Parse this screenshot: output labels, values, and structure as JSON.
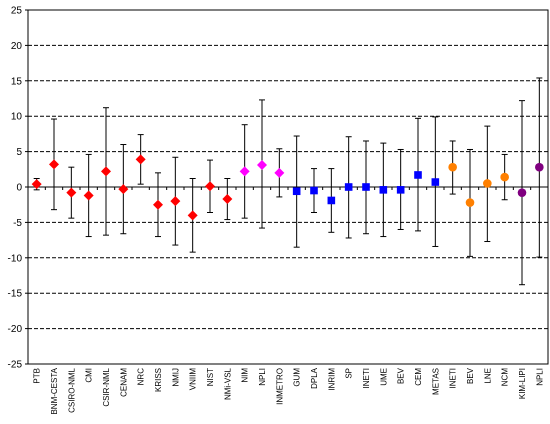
{
  "chart_data": {
    "type": "scatter",
    "title": "",
    "xlabel": "",
    "ylabel": "",
    "ylim": [
      -25,
      25
    ],
    "yticks": [
      -25,
      -20,
      -15,
      -10,
      -5,
      0,
      5,
      10,
      15,
      20,
      25
    ],
    "grid": "horizontal dashed",
    "legend": "none",
    "error_bars": true,
    "categories": [
      "PTB",
      "BNM-CESTA",
      "CSIRO-NML",
      "CMI",
      "CSIR-NML",
      "CENAM",
      "NRC",
      "KRISS",
      "NMIJ",
      "VNIIM",
      "NIST",
      "NMi-VSL",
      "NIM",
      "NPLI",
      "INMETRO",
      "GUM",
      "DPLA",
      "INRIM",
      "SP",
      "INETI",
      "UME",
      "BEV",
      "CEM",
      "METAS",
      "INETI",
      "BEV",
      "LNE",
      "NCM",
      "KIM-LIPI",
      "NPLI"
    ],
    "points": [
      {
        "label": "PTB",
        "y": 0.4,
        "lower": -0.4,
        "upper": 1.2,
        "marker": "diamond",
        "color": "#ff0000"
      },
      {
        "label": "BNM-CESTA",
        "y": 3.2,
        "lower": -3.2,
        "upper": 9.6,
        "marker": "diamond",
        "color": "#ff0000"
      },
      {
        "label": "CSIRO-NML",
        "y": -0.8,
        "lower": -4.4,
        "upper": 2.8,
        "marker": "diamond",
        "color": "#ff0000"
      },
      {
        "label": "CMI",
        "y": -1.2,
        "lower": -7.0,
        "upper": 4.6,
        "marker": "diamond",
        "color": "#ff0000"
      },
      {
        "label": "CSIR-NML",
        "y": 2.2,
        "lower": -6.8,
        "upper": 11.2,
        "marker": "diamond",
        "color": "#ff0000"
      },
      {
        "label": "CENAM",
        "y": -0.3,
        "lower": -6.6,
        "upper": 6.0,
        "marker": "diamond",
        "color": "#ff0000"
      },
      {
        "label": "NRC",
        "y": 3.9,
        "lower": 0.4,
        "upper": 7.4,
        "marker": "diamond",
        "color": "#ff0000"
      },
      {
        "label": "KRISS",
        "y": -2.5,
        "lower": -7.0,
        "upper": 2.0,
        "marker": "diamond",
        "color": "#ff0000"
      },
      {
        "label": "NMIJ",
        "y": -2.0,
        "lower": -8.2,
        "upper": 4.2,
        "marker": "diamond",
        "color": "#ff0000"
      },
      {
        "label": "VNIIM",
        "y": -4.0,
        "lower": -9.2,
        "upper": 1.2,
        "marker": "diamond",
        "color": "#ff0000"
      },
      {
        "label": "NIST",
        "y": 0.1,
        "lower": -3.6,
        "upper": 3.8,
        "marker": "diamond",
        "color": "#ff0000"
      },
      {
        "label": "NMi-VSL",
        "y": -1.7,
        "lower": -4.6,
        "upper": 1.2,
        "marker": "diamond",
        "color": "#ff0000"
      },
      {
        "label": "NIM",
        "y": 2.2,
        "lower": -4.4,
        "upper": 8.8,
        "marker": "diamond",
        "color": "#ff00ff"
      },
      {
        "label": "NPLI",
        "y": 3.1,
        "lower": -5.8,
        "upper": 12.3,
        "marker": "diamond",
        "color": "#ff00ff"
      },
      {
        "label": "INMETRO",
        "y": 2.0,
        "lower": -1.4,
        "upper": 5.4,
        "marker": "diamond",
        "color": "#ff00ff"
      },
      {
        "label": "GUM",
        "y": -0.6,
        "lower": -8.5,
        "upper": 7.2,
        "marker": "square",
        "color": "#0000ff"
      },
      {
        "label": "DPLA",
        "y": -0.5,
        "lower": -3.6,
        "upper": 2.6,
        "marker": "square",
        "color": "#0000ff"
      },
      {
        "label": "INRIM",
        "y": -1.9,
        "lower": -6.4,
        "upper": 2.6,
        "marker": "square",
        "color": "#0000ff"
      },
      {
        "label": "SP",
        "y": 0.0,
        "lower": -7.2,
        "upper": 7.1,
        "marker": "square",
        "color": "#0000ff"
      },
      {
        "label": "INETI",
        "y": 0.0,
        "lower": -6.6,
        "upper": 6.5,
        "marker": "square",
        "color": "#0000ff"
      },
      {
        "label": "UME",
        "y": -0.4,
        "lower": -7.0,
        "upper": 6.2,
        "marker": "square",
        "color": "#0000ff"
      },
      {
        "label": "BEV",
        "y": -0.4,
        "lower": -6.0,
        "upper": 5.3,
        "marker": "square",
        "color": "#0000ff"
      },
      {
        "label": "CEM",
        "y": 1.7,
        "lower": -6.2,
        "upper": 9.7,
        "marker": "square",
        "color": "#0000ff"
      },
      {
        "label": "METAS",
        "y": 0.7,
        "lower": -8.4,
        "upper": 9.9,
        "marker": "square",
        "color": "#0000ff"
      },
      {
        "label": "INETI",
        "y": 2.8,
        "lower": -1.0,
        "upper": 6.5,
        "marker": "circle",
        "color": "#ff8000"
      },
      {
        "label": "BEV",
        "y": -2.2,
        "lower": -9.8,
        "upper": 5.3,
        "marker": "circle",
        "color": "#ff8000"
      },
      {
        "label": "LNE",
        "y": 0.5,
        "lower": -7.7,
        "upper": 8.6,
        "marker": "circle",
        "color": "#ff8000"
      },
      {
        "label": "NCM",
        "y": 1.4,
        "lower": -1.8,
        "upper": 4.6,
        "marker": "circle",
        "color": "#ff8000"
      },
      {
        "label": "KIM-LIPI",
        "y": -0.8,
        "lower": -13.8,
        "upper": 12.2,
        "marker": "circle",
        "color": "#800080"
      },
      {
        "label": "NPLI",
        "y": 2.8,
        "lower": -9.9,
        "upper": 15.4,
        "marker": "circle",
        "color": "#800080"
      }
    ]
  }
}
